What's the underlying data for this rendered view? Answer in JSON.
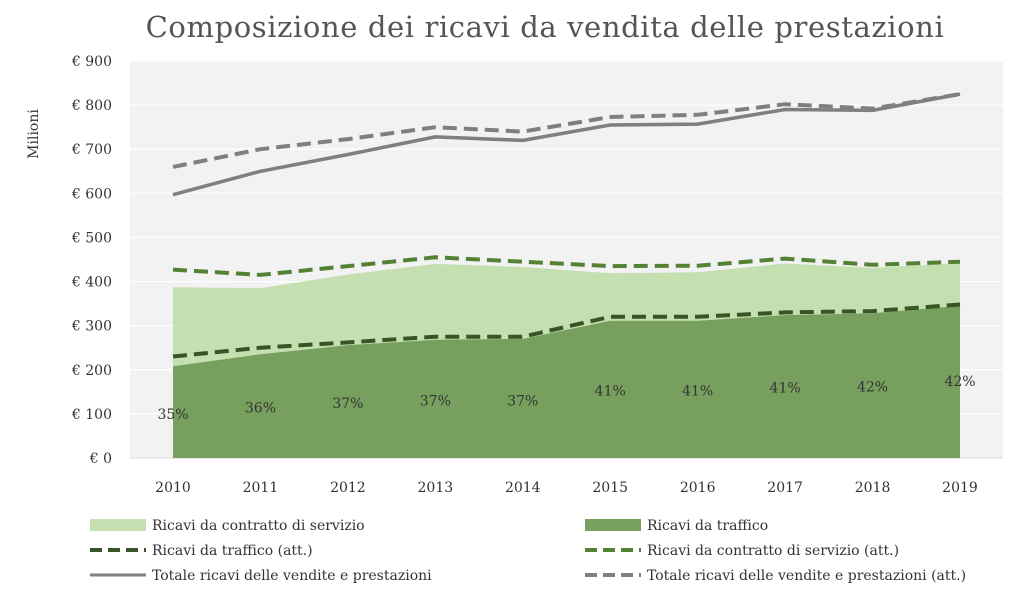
{
  "chart_data": {
    "type": "area",
    "title": "Composizione dei ricavi da vendita delle prestazioni",
    "ylabel": "Milioni",
    "xlabel": "",
    "categories": [
      "2010",
      "2011",
      "2012",
      "2013",
      "2014",
      "2015",
      "2016",
      "2017",
      "2018",
      "2019"
    ],
    "ylim": [
      0,
      900
    ],
    "yticks": [
      0,
      100,
      200,
      300,
      400,
      500,
      600,
      700,
      800,
      900
    ],
    "ytick_labels": [
      "€ 0",
      "€ 100",
      "€ 200",
      "€ 300",
      "€ 400",
      "€ 500",
      "€ 600",
      "€ 700",
      "€ 800",
      "€ 900"
    ],
    "grid": true,
    "legend_position": "bottom",
    "series": [
      {
        "name": "Ricavi da contratto di servizio",
        "kind": "stacked-area",
        "color": "#c4dfb0",
        "values": [
          179,
          150,
          160,
          172,
          163,
          108,
          110,
          117,
          103,
          97
        ]
      },
      {
        "name": "Ricavi da traffico",
        "kind": "stacked-area",
        "color": "#77a05e",
        "values": [
          208,
          235,
          256,
          268,
          270,
          311,
          311,
          324,
          328,
          345
        ]
      },
      {
        "name": "Ricavi da traffico (att.)",
        "kind": "dashed-line",
        "color": "#375623",
        "values": [
          230,
          250,
          262,
          275,
          275,
          320,
          320,
          330,
          333,
          348
        ]
      },
      {
        "name": "Ricavi da contratto di servizio (att.)",
        "kind": "dashed-line",
        "color": "#548235",
        "values": [
          427,
          415,
          435,
          455,
          445,
          435,
          436,
          452,
          438,
          445
        ]
      },
      {
        "name": "Totale ricavi delle vendite e prestazioni",
        "kind": "solid-line",
        "color": "#7f7f7f",
        "values": [
          597,
          650,
          688,
          728,
          720,
          755,
          757,
          790,
          788,
          825
        ]
      },
      {
        "name": "Totale ricavi delle vendite e prestazioni (att.)",
        "kind": "dashed-line",
        "color": "#7f7f7f",
        "values": [
          660,
          700,
          723,
          750,
          740,
          773,
          778,
          802,
          792,
          825
        ]
      }
    ],
    "data_labels": {
      "values": [
        "35%",
        "36%",
        "37%",
        "37%",
        "37%",
        "41%",
        "41%",
        "41%",
        "42%",
        "42%"
      ],
      "y": [
        100,
        115,
        125,
        130,
        130,
        153,
        153,
        160,
        162,
        175
      ]
    },
    "legend_order": [
      0,
      1,
      2,
      3,
      4,
      5
    ]
  }
}
